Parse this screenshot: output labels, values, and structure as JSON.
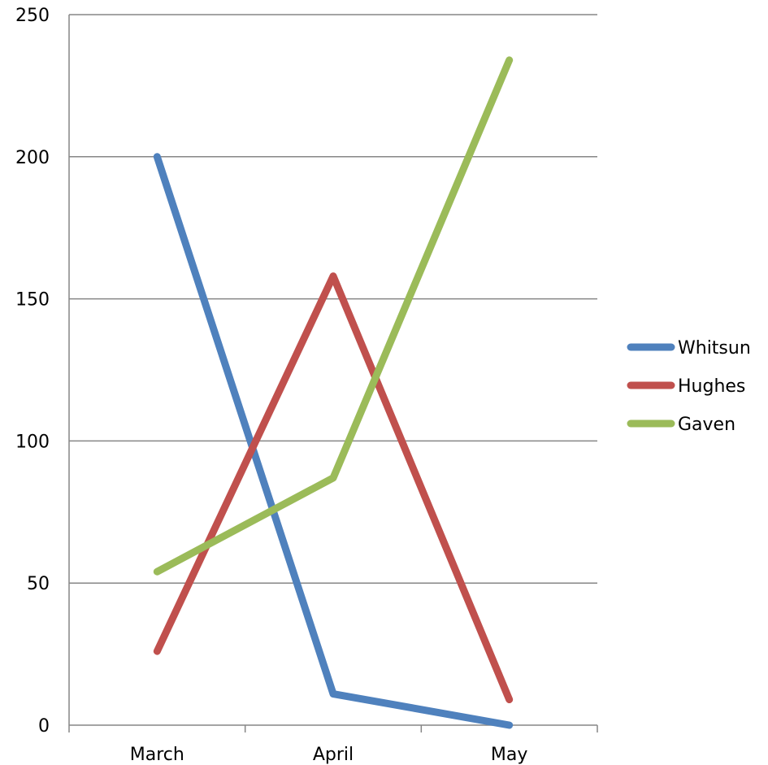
{
  "chart_data": {
    "type": "line",
    "categories": [
      "March",
      "April",
      "May"
    ],
    "series": [
      {
        "name": "Whitsun",
        "values": [
          200,
          11,
          0
        ],
        "color": "#4F81BD"
      },
      {
        "name": "Hughes",
        "values": [
          26,
          158,
          9
        ],
        "color": "#C0504D"
      },
      {
        "name": "Gaven",
        "values": [
          54,
          87,
          234
        ],
        "color": "#9BBB59"
      }
    ],
    "yticks": [
      "0",
      "50",
      "100",
      "150",
      "200",
      "250"
    ],
    "ylim": [
      0,
      250
    ],
    "grid": true,
    "legend": "right"
  }
}
